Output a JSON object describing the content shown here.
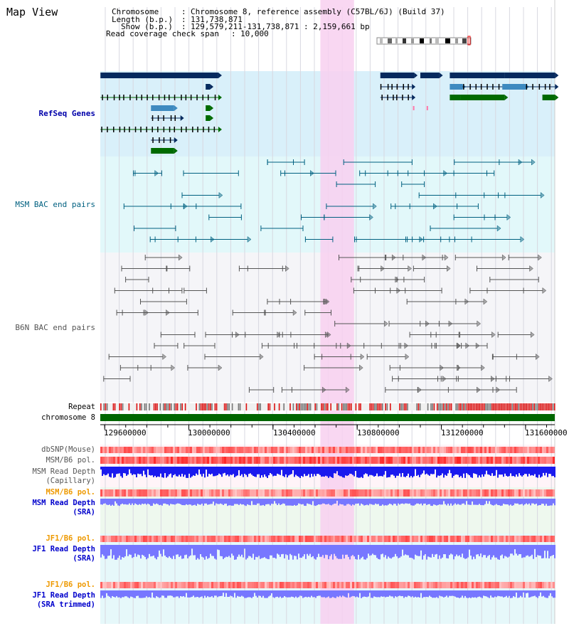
{
  "view_title": "Map View",
  "header": {
    "chromosome_key": "Chromosome",
    "chromosome_val": "Chromosome 8, reference assembly (C57BL/6J) (Build 37)",
    "length_key": "Length (b.p.)",
    "length_val": "131,738,871",
    "show_key": "Show (b.p.)",
    "show_val": "129,579,211-131,738,871 : 2,159,661 bp",
    "span_key": "Read coverage check span",
    "span_val": "10,000"
  },
  "tracks": {
    "refseq": {
      "label": "RefSeq Genes",
      "color": "#0000aa",
      "bg": "#d9f0fa"
    },
    "msm_bac": {
      "label": "MSM BAC end pairs",
      "color": "#006080",
      "bg": "#e2f8fa"
    },
    "b6n_bac": {
      "label": "B6N BAC end pairs",
      "color": "#555555",
      "bg": "#f5f5f8"
    },
    "repeat": {
      "label": "Repeat"
    },
    "chromosome": {
      "label": "chromosome 8",
      "color": "#006600"
    },
    "dbsnp": {
      "label": "dbSNP(Mouse)"
    },
    "msm_b6_pol_cap": {
      "label": "MSM/B6 pol."
    },
    "msm_depth_cap": {
      "line1": "MSM Read Depth",
      "line2": "(Capillary)"
    },
    "msm_b6_pol_sra": {
      "label": "MSM/B6 pol.",
      "color": "#ee9900"
    },
    "msm_depth_sra": {
      "line1": "MSM Read Depth",
      "line2": "(SRA)",
      "color": "#0000cc"
    },
    "jf1_b6_pol_sra": {
      "label": "JF1/B6 pol.",
      "color": "#ee9900"
    },
    "jf1_depth_sra": {
      "line1": "JF1 Read Depth",
      "line2": "(SRA)",
      "color": "#0000cc"
    },
    "jf1_b6_pol_trim": {
      "label": "JF1/B6 pol.",
      "color": "#ee9900"
    },
    "jf1_depth_trim": {
      "line1": "JF1 Read Depth",
      "line2": "(SRA trimmed)",
      "color": "#0000cc"
    }
  },
  "axis": {
    "range_bp": [
      129579211,
      131738871
    ],
    "tick_labels": [
      "129600000",
      "130000000",
      "130400000",
      "130800000",
      "131200000",
      "131600000"
    ],
    "tick_values": [
      129600000,
      130000000,
      130400000,
      130800000,
      131200000,
      131600000
    ]
  },
  "highlight": {
    "start_bp": 130625000,
    "end_bp": 130785000,
    "color": "#f8d0f0"
  },
  "colors": {
    "gene_navy": "#062a5e",
    "gene_mid": "#3e8ac0",
    "gene_green": "#006a00",
    "gene_pink": "#ff77aa",
    "repeat_red": "#dd1111",
    "repeat_gray": "#777777",
    "chrom_green": "#006600",
    "depth_blue": "#1a1aee",
    "depth_light": "#7777ff"
  },
  "refseq_genes": [
    {
      "row": 0,
      "start": 129580000,
      "end": 130140000,
      "style": "solid-navy"
    },
    {
      "row": 0,
      "start": 130910000,
      "end": 131070000,
      "style": "solid-navy"
    },
    {
      "row": 0,
      "start": 131100000,
      "end": 131190000,
      "style": "solid-navy"
    },
    {
      "row": 0,
      "start": 131240000,
      "end": 131500000,
      "style": "solid-navy"
    },
    {
      "row": 0,
      "start": 131500000,
      "end": 131740000,
      "style": "solid-navy"
    },
    {
      "row": 1,
      "start": 130080000,
      "end": 130100000,
      "style": "solid-navy"
    },
    {
      "row": 1,
      "start": 130910000,
      "end": 131060000,
      "style": "exon-black"
    },
    {
      "row": 1,
      "start": 131240000,
      "end": 131300000,
      "style": "solid-mid"
    },
    {
      "row": 1,
      "start": 131300000,
      "end": 131490000,
      "style": "exon-black"
    },
    {
      "row": 1,
      "start": 131490000,
      "end": 131600000,
      "style": "solid-mid"
    },
    {
      "row": 1,
      "start": 131600000,
      "end": 131740000,
      "style": "exon-black"
    },
    {
      "row": 2,
      "start": 129580000,
      "end": 130140000,
      "style": "exon-green"
    },
    {
      "row": 2,
      "start": 130910000,
      "end": 131060000,
      "style": "exon-black"
    },
    {
      "row": 2,
      "start": 131240000,
      "end": 131290000,
      "style": "solid-green"
    },
    {
      "row": 2,
      "start": 131290000,
      "end": 131500000,
      "style": "solid-green"
    },
    {
      "row": 2,
      "start": 131680000,
      "end": 131740000,
      "style": "solid-green"
    },
    {
      "row": 3,
      "start": 129820000,
      "end": 129930000,
      "style": "solid-mid"
    },
    {
      "row": 3,
      "start": 130080000,
      "end": 130100000,
      "style": "solid-green"
    },
    {
      "row": 3,
      "start": 131065000,
      "end": 131070000,
      "style": "solid-pink"
    },
    {
      "row": 3,
      "start": 131130000,
      "end": 131135000,
      "style": "solid-pink"
    },
    {
      "row": 4,
      "start": 129820000,
      "end": 129960000,
      "style": "exon-black"
    },
    {
      "row": 4,
      "start": 130080000,
      "end": 130100000,
      "style": "solid-green"
    },
    {
      "row": 5,
      "start": 129580000,
      "end": 130140000,
      "style": "exon-green"
    },
    {
      "row": 6,
      "start": 129820000,
      "end": 129930000,
      "style": "exon-black"
    },
    {
      "row": 7,
      "start": 129820000,
      "end": 129930000,
      "style": "solid-green"
    }
  ]
}
